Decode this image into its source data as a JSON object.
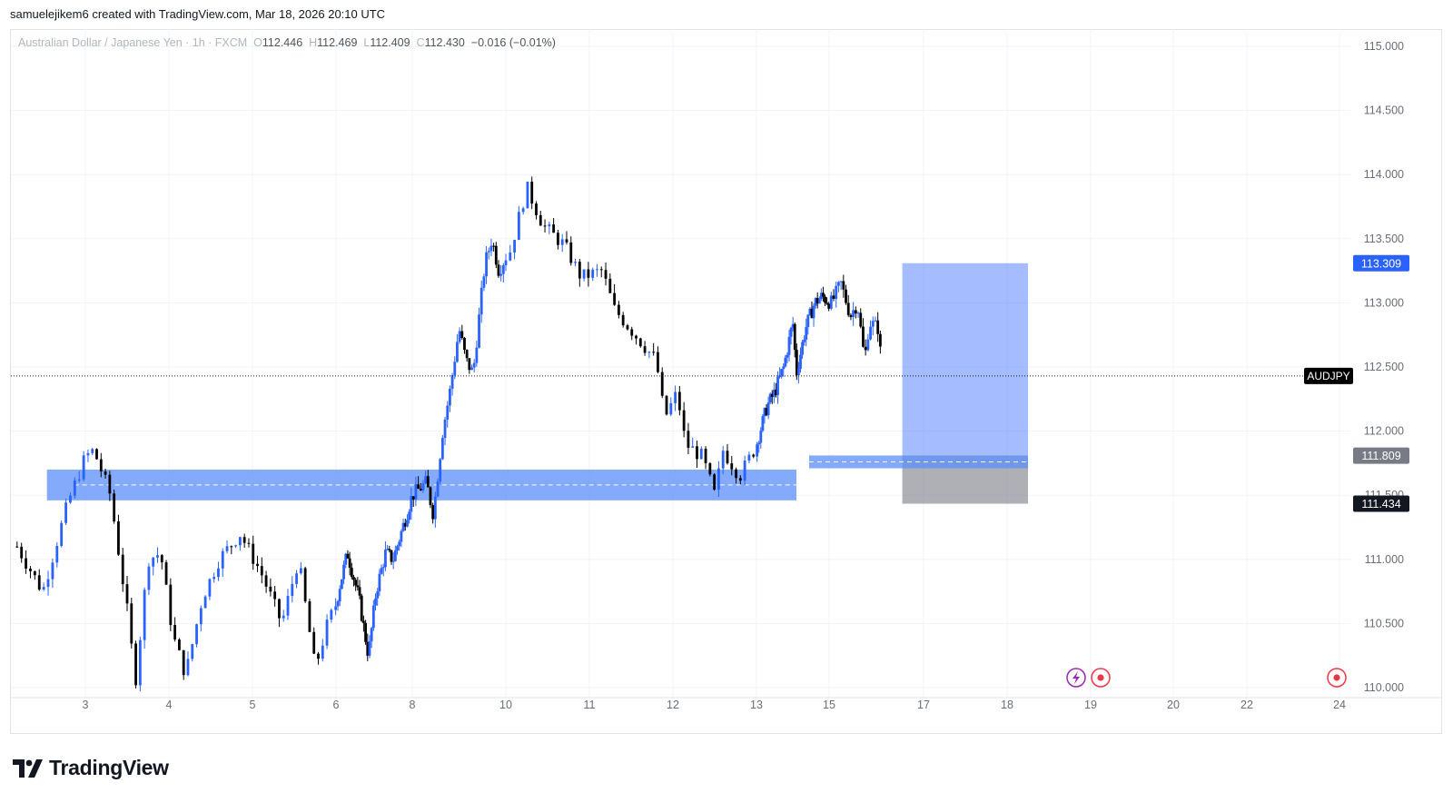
{
  "header": {
    "author_line": "samuelejikem6 created with TradingView.com, Mar 18, 2026 20:10 UTC"
  },
  "legend": {
    "symbol": "Australian Dollar / Japanese Yen · 1h · FXCM",
    "open_label": "O",
    "open": "112.446",
    "high_label": "H",
    "high": "112.469",
    "low_label": "L",
    "low": "112.409",
    "close_label": "C",
    "close": "112.430",
    "change": "−0.016 (−0.01%)"
  },
  "footer": {
    "brand": "TradingView"
  },
  "colors": {
    "up": "#2962ff",
    "down": "#000000",
    "zone": "#5b8ff9",
    "target": "#2962ff",
    "stop": "#787b86",
    "grid": "#f0f3fa"
  },
  "icons": [
    "lightning-icon",
    "record-icon",
    "record-icon"
  ],
  "chart_data": {
    "type": "candlestick",
    "symbol": "AUDJPY",
    "timeframe": "1h",
    "ylim": [
      110.0,
      115.0
    ],
    "y_ticks": [
      110.0,
      110.5,
      111.0,
      111.5,
      112.0,
      112.5,
      113.0,
      113.5,
      114.0,
      114.5,
      115.0
    ],
    "y_tick_labels": [
      "110.000",
      "110.500",
      "111.000",
      "111.500",
      "112.000",
      "112.500",
      "113.000",
      "113.500",
      "114.000",
      "114.500",
      "115.000"
    ],
    "x_tick_labels": [
      "3",
      "4",
      "5",
      "6",
      "8",
      "10",
      "11",
      "12",
      "13",
      "15",
      "17",
      "18",
      "19",
      "20",
      "22",
      "24"
    ],
    "x_tick_days": [
      3.0,
      4.0,
      5.0,
      6.0,
      8.0,
      10.0,
      11.0,
      12.0,
      13.0,
      15.0,
      17.0,
      18.0,
      19.0,
      20.0,
      22.0,
      24.0
    ],
    "price_path": [
      [
        2.2,
        111.1
      ],
      [
        2.5,
        110.75
      ],
      [
        2.8,
        111.45
      ],
      [
        3.0,
        111.8
      ],
      [
        3.1,
        111.85
      ],
      [
        3.3,
        111.5
      ],
      [
        3.5,
        110.6
      ],
      [
        3.6,
        110.05
      ],
      [
        3.75,
        111.0
      ],
      [
        3.9,
        111.05
      ],
      [
        4.05,
        110.4
      ],
      [
        4.2,
        110.1
      ],
      [
        4.4,
        110.7
      ],
      [
        4.6,
        111.0
      ],
      [
        4.85,
        111.2
      ],
      [
        5.1,
        110.9
      ],
      [
        5.35,
        110.5
      ],
      [
        5.55,
        111.0
      ],
      [
        5.75,
        110.15
      ],
      [
        5.9,
        110.5
      ],
      [
        6.1,
        110.8
      ],
      [
        6.3,
        111.05
      ],
      [
        6.6,
        110.7
      ],
      [
        6.85,
        110.25
      ],
      [
        7.05,
        110.75
      ],
      [
        7.3,
        111.05
      ],
      [
        7.5,
        111.0
      ],
      [
        7.75,
        111.25
      ],
      [
        8.0,
        111.5
      ],
      [
        8.3,
        111.6
      ],
      [
        8.45,
        111.35
      ],
      [
        8.65,
        112.0
      ],
      [
        8.8,
        112.3
      ],
      [
        9.0,
        112.8
      ],
      [
        9.15,
        112.55
      ],
      [
        9.3,
        112.45
      ],
      [
        9.55,
        113.3
      ],
      [
        9.7,
        113.5
      ],
      [
        9.85,
        113.25
      ],
      [
        10.05,
        113.4
      ],
      [
        10.25,
        113.9
      ],
      [
        10.45,
        113.6
      ],
      [
        10.7,
        113.45
      ],
      [
        10.9,
        113.2
      ],
      [
        11.15,
        113.25
      ],
      [
        11.3,
        112.95
      ],
      [
        11.55,
        112.75
      ],
      [
        11.8,
        112.55
      ],
      [
        11.9,
        112.1
      ],
      [
        12.05,
        112.3
      ],
      [
        12.15,
        111.9
      ],
      [
        12.35,
        111.8
      ],
      [
        12.5,
        111.5
      ],
      [
        12.6,
        111.85
      ],
      [
        12.8,
        111.65
      ],
      [
        13.05,
        111.95
      ],
      [
        13.3,
        112.2
      ],
      [
        13.5,
        112.3
      ],
      [
        13.75,
        112.5
      ],
      [
        14.0,
        112.85
      ],
      [
        14.1,
        112.45
      ],
      [
        14.35,
        112.8
      ],
      [
        14.6,
        113.0
      ],
      [
        14.8,
        113.05
      ],
      [
        15.05,
        113.0
      ],
      [
        15.25,
        113.15
      ],
      [
        15.45,
        112.9
      ],
      [
        15.6,
        113.0
      ],
      [
        15.75,
        112.55
      ],
      [
        15.85,
        112.85
      ],
      [
        16.05,
        112.8
      ],
      [
        16.12,
        112.43
      ]
    ],
    "last_price": 112.43,
    "last_price_label": "AUDJPY",
    "annotations": {
      "support_zone": {
        "low": 111.46,
        "high": 111.7,
        "start_day": 2.55,
        "end_day": 14.1,
        "midline": 111.58
      },
      "entry_zone": {
        "low": 111.71,
        "high": 111.81,
        "start_day": 14.45,
        "end_day": 16.55,
        "midline": 111.76
      },
      "long_position": {
        "start_day": 16.55,
        "end_day": 18.25,
        "target": 113.309,
        "entry": 111.809,
        "stop": 111.434
      },
      "price_labels": [
        {
          "value": 113.309,
          "text": "113.309",
          "color": "#2962ff"
        },
        {
          "value": 111.809,
          "text": "111.809",
          "color": "#787b86"
        },
        {
          "value": 111.434,
          "text": "111.434",
          "color": "#131722"
        }
      ]
    }
  }
}
